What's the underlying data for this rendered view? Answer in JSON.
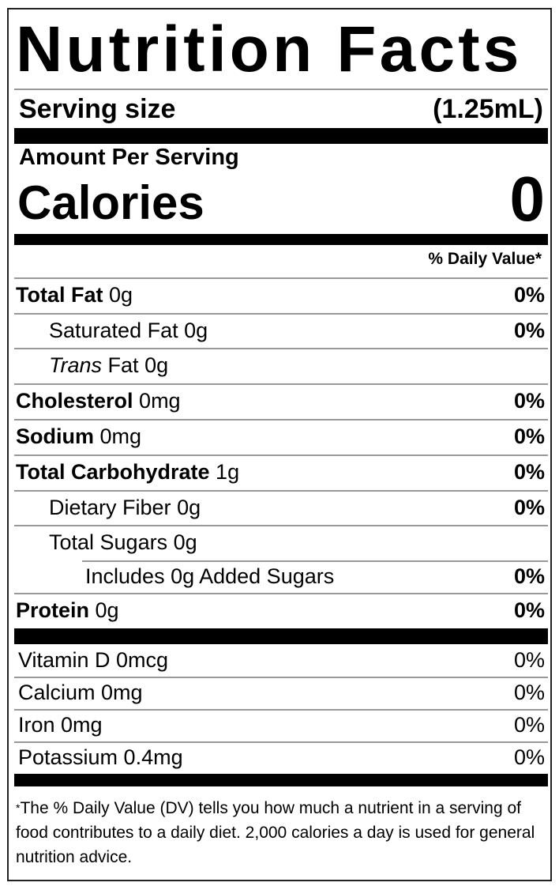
{
  "title": "Nutrition Facts",
  "serving": {
    "label": "Serving size",
    "value": "(1.25mL)"
  },
  "amount_per_serving": "Amount Per Serving",
  "calories": {
    "label": "Calories",
    "value": "0"
  },
  "daily_value_header": "% Daily Value*",
  "nutrients": [
    {
      "name": "Total Fat",
      "amount": "0g",
      "dv": "0%"
    },
    {
      "name": "Saturated Fat",
      "amount": "0g",
      "dv": "0%"
    },
    {
      "name_italic": "Trans",
      "name": "Fat",
      "amount": "0g",
      "dv": ""
    },
    {
      "name": "Cholesterol",
      "amount": "0mg",
      "dv": "0%"
    },
    {
      "name": "Sodium",
      "amount": "0mg",
      "dv": "0%"
    },
    {
      "name": "Total Carbohydrate",
      "amount": "1g",
      "dv": "0%"
    },
    {
      "name": "Dietary Fiber",
      "amount": "0g",
      "dv": "0%"
    },
    {
      "name": "Total Sugars",
      "amount": "0g",
      "dv": ""
    },
    {
      "name": "Includes 0g Added Sugars",
      "amount": "",
      "dv": "0%"
    },
    {
      "name": "Protein",
      "amount": "0g",
      "dv": "0%"
    }
  ],
  "vitamins": [
    {
      "label": "Vitamin D 0mcg",
      "dv": "0%"
    },
    {
      "label": "Calcium 0mg",
      "dv": "0%"
    },
    {
      "label": "Iron 0mg",
      "dv": "0%"
    },
    {
      "label": "Potassium 0.4mg",
      "dv": "0%"
    }
  ],
  "footnote": {
    "star": "*",
    "text": "The % Daily Value (DV) tells you how much a nutrient in a serving of food contributes to a daily diet. 2,000 calories a day is used for general nutrition advice."
  }
}
